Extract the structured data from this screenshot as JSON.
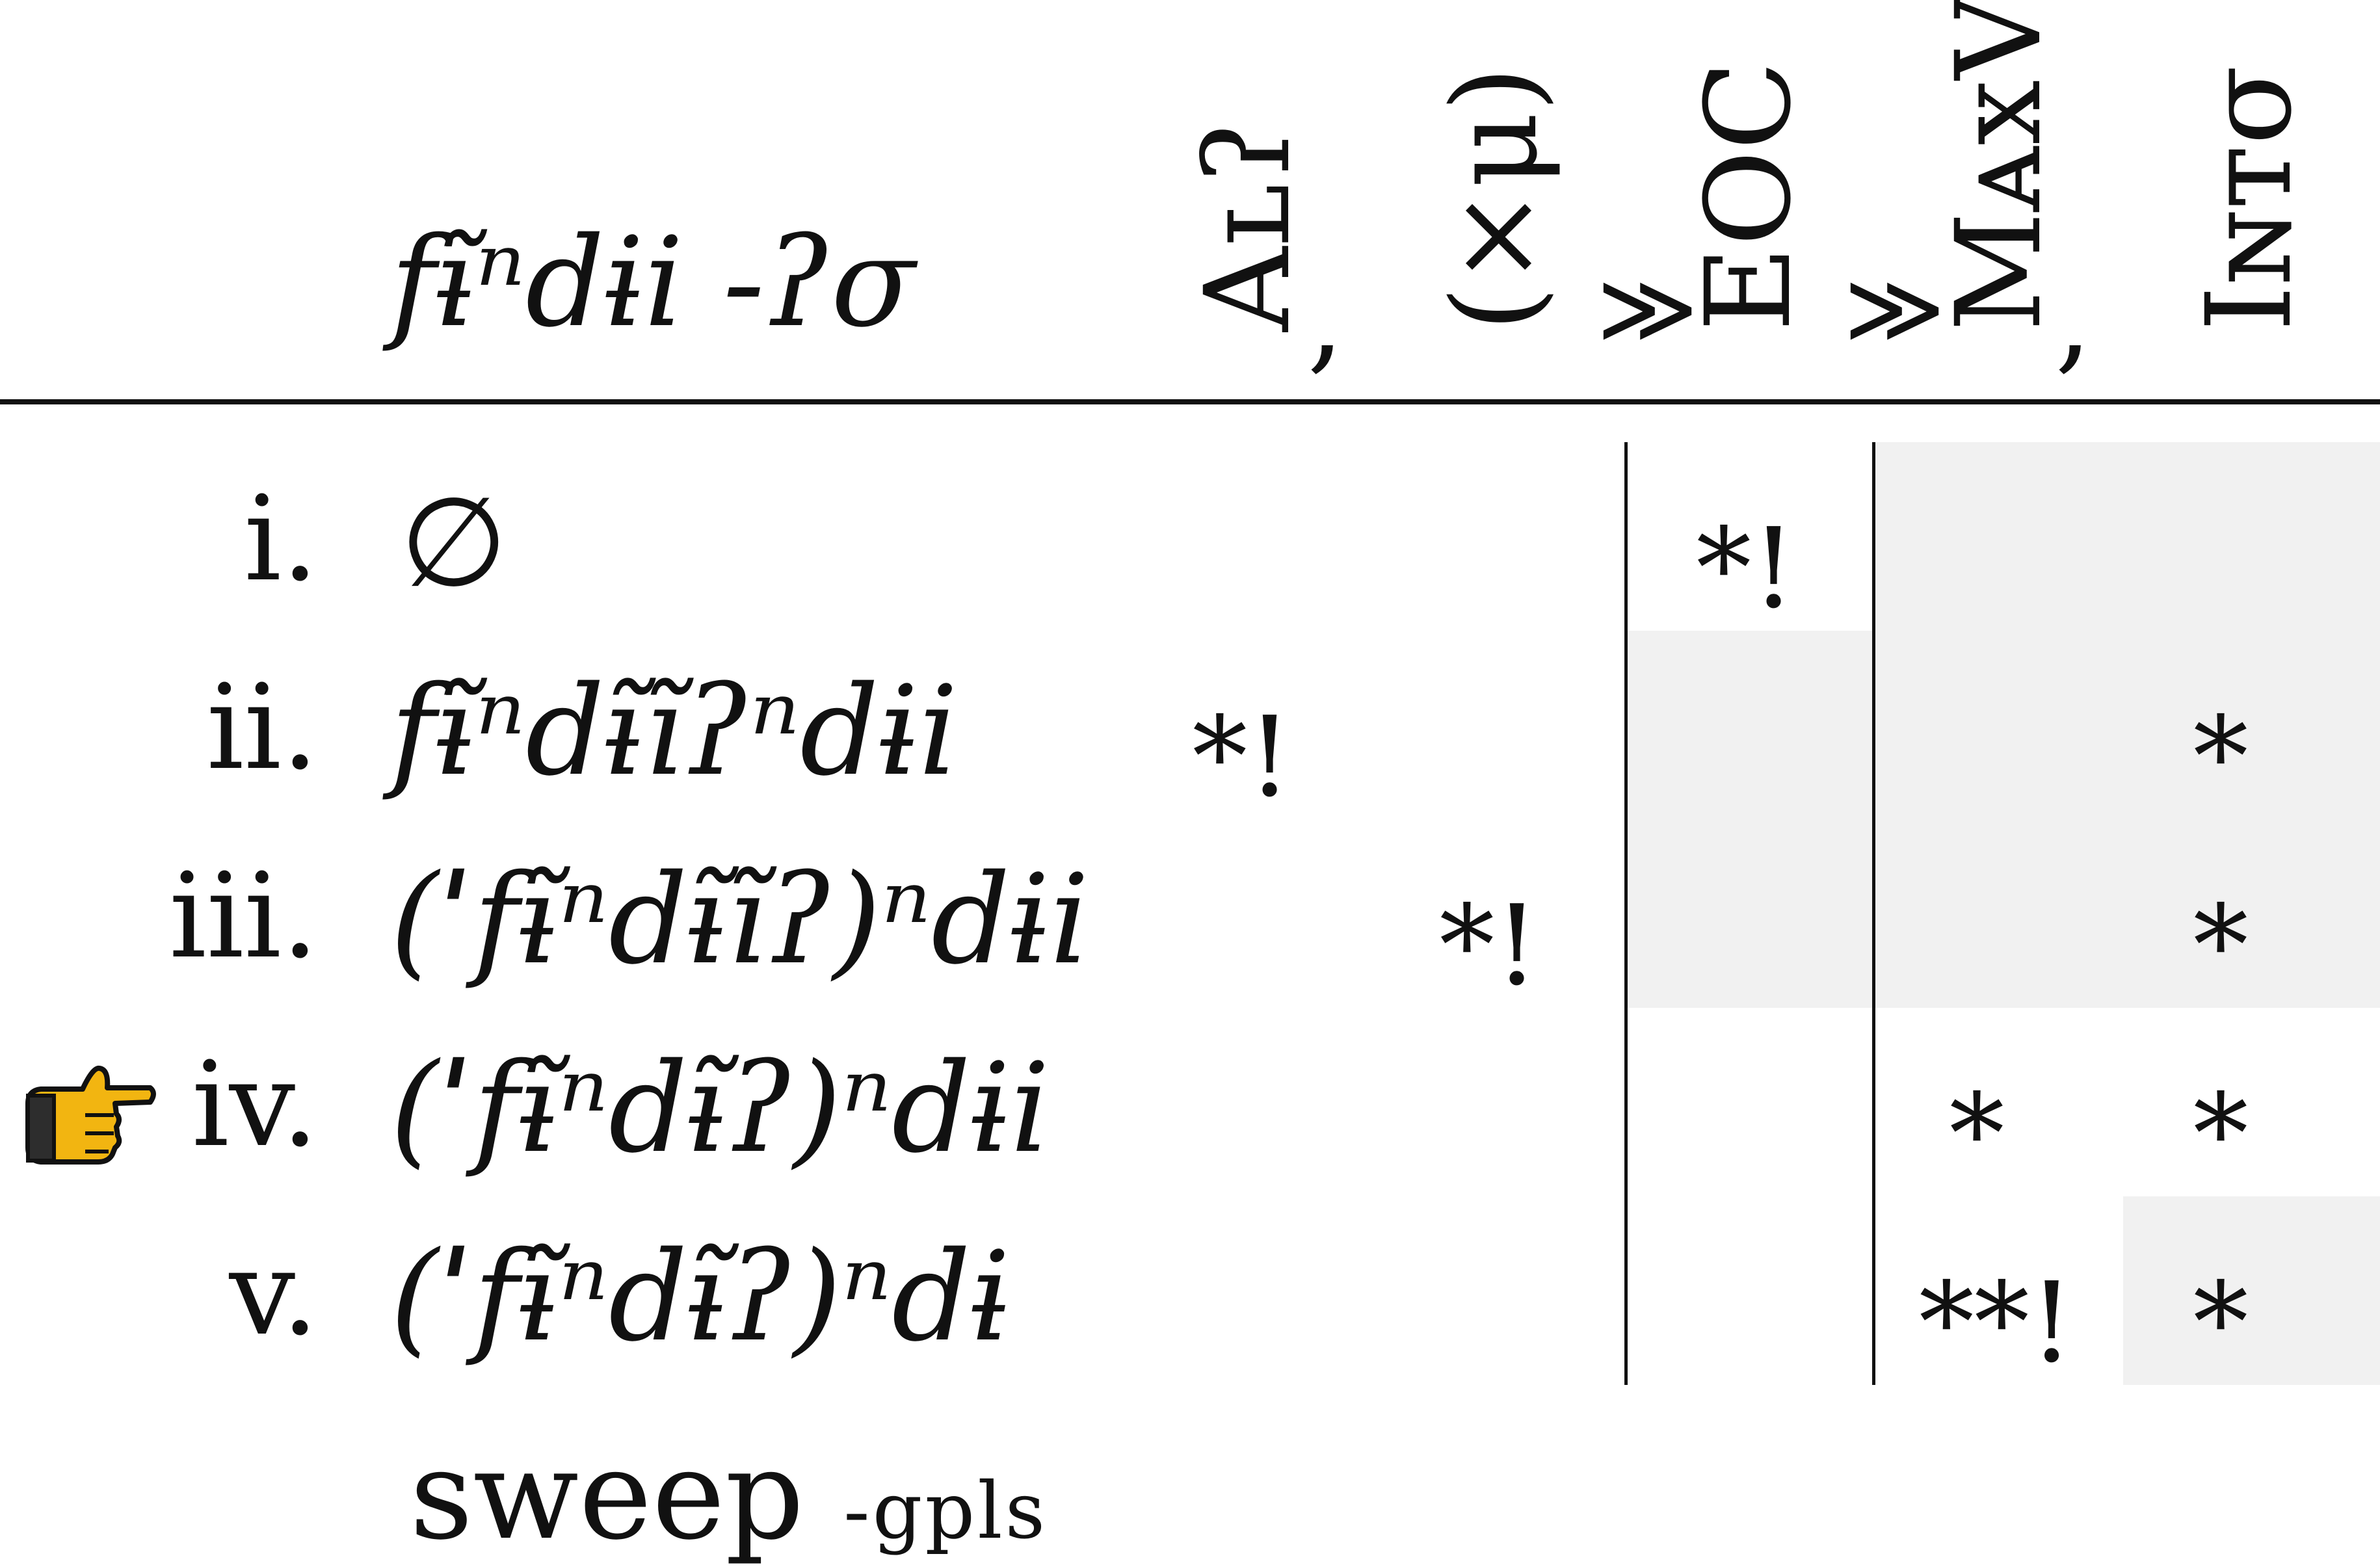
{
  "tableau": {
    "input": "fɨ̃ⁿdɨi -ʔσ",
    "constraints": [
      {
        "label": "Aʟʔ",
        "sep": ","
      },
      {
        "label": "(×μ)",
        "sep": "≫"
      },
      {
        "label": "EOC",
        "sep": "≫"
      },
      {
        "label": "MᴀxV",
        "sep": ","
      },
      {
        "label": "Iɴᴛσ",
        "sep": ""
      }
    ],
    "candidates": [
      {
        "num": "i.",
        "form": "∅",
        "marks": [
          "",
          "",
          "*!",
          "",
          ""
        ],
        "winner": false
      },
      {
        "num": "ii.",
        "form": "fɨ̃ⁿdɨ̃ĩʔⁿdɨi",
        "marks": [
          "*!",
          "",
          "",
          "",
          "*"
        ],
        "winner": false
      },
      {
        "num": "iii.",
        "form": "(ˈfɨ̃ⁿdɨ̃ĩʔ)ⁿdɨi",
        "marks": [
          "",
          "*!",
          "",
          "",
          "*"
        ],
        "winner": false
      },
      {
        "num": "iv.",
        "form": "(ˈfɨ̃ⁿdɨ̃ʔ)ⁿdɨi",
        "marks": [
          "",
          "",
          "",
          "*",
          "*"
        ],
        "winner": true
      },
      {
        "num": "v.",
        "form": "(ˈfɨ̃ⁿdɨ̃ʔ)ⁿdɨ",
        "marks": [
          "",
          "",
          "",
          "**!",
          "*"
        ],
        "winner": false
      }
    ],
    "note": {
      "word": "sweep",
      "gloss": "-gpls"
    },
    "winner_icon": "pointing-hand-icon"
  }
}
